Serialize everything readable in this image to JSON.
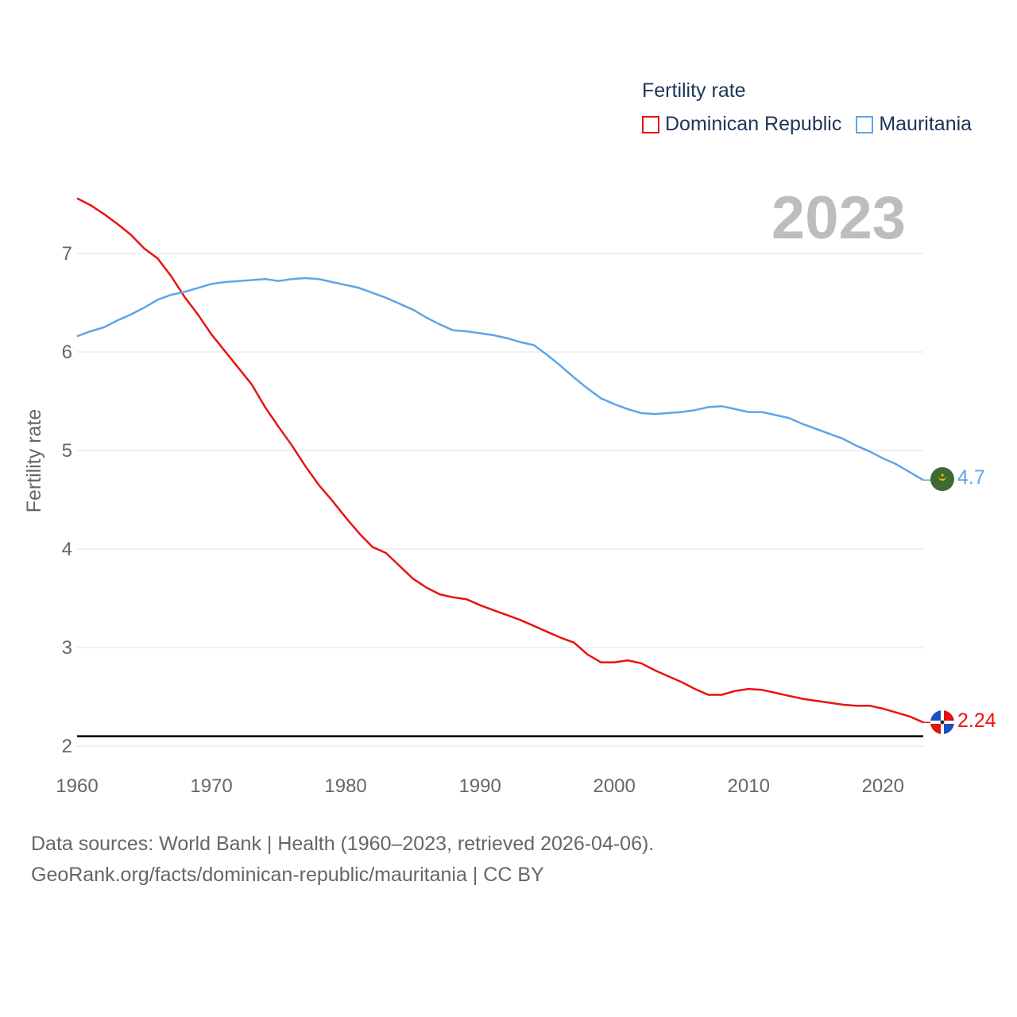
{
  "chart_data": {
    "type": "line",
    "title": "Fertility rate",
    "ylabel": "Fertility rate",
    "xlabel": "",
    "year_label": "2023",
    "xlim": [
      1960,
      2023
    ],
    "ylim": [
      2,
      7.6
    ],
    "x_ticks": [
      "1960",
      "1970",
      "1980",
      "1990",
      "2000",
      "2010",
      "2020"
    ],
    "y_ticks": [
      "2",
      "3",
      "4",
      "5",
      "6",
      "7"
    ],
    "reference_line": 2.1,
    "x": [
      1960,
      1961,
      1962,
      1963,
      1964,
      1965,
      1966,
      1967,
      1968,
      1969,
      1970,
      1971,
      1972,
      1973,
      1974,
      1975,
      1976,
      1977,
      1978,
      1979,
      1980,
      1981,
      1982,
      1983,
      1984,
      1985,
      1986,
      1987,
      1988,
      1989,
      1990,
      1991,
      1992,
      1993,
      1994,
      1995,
      1996,
      1997,
      1998,
      1999,
      2000,
      2001,
      2002,
      2003,
      2004,
      2005,
      2006,
      2007,
      2008,
      2009,
      2010,
      2011,
      2012,
      2013,
      2014,
      2015,
      2016,
      2017,
      2018,
      2019,
      2020,
      2021,
      2022,
      2023
    ],
    "series": [
      {
        "name": "Dominican Republic",
        "color": "#e8140f",
        "end_label": "2.24",
        "flag": "dominican-republic-flag-icon",
        "values": [
          7.56,
          7.49,
          7.4,
          7.3,
          7.19,
          7.05,
          6.95,
          6.77,
          6.56,
          6.38,
          6.18,
          6.01,
          5.84,
          5.67,
          5.44,
          5.24,
          5.05,
          4.84,
          4.65,
          4.49,
          4.32,
          4.16,
          4.02,
          3.96,
          3.83,
          3.7,
          3.61,
          3.54,
          3.51,
          3.49,
          3.43,
          3.38,
          3.33,
          3.28,
          3.22,
          3.16,
          3.1,
          3.05,
          2.93,
          2.85,
          2.85,
          2.87,
          2.84,
          2.77,
          2.71,
          2.65,
          2.58,
          2.52,
          2.52,
          2.56,
          2.58,
          2.57,
          2.54,
          2.51,
          2.48,
          2.46,
          2.44,
          2.42,
          2.41,
          2.41,
          2.38,
          2.34,
          2.3,
          2.24
        ]
      },
      {
        "name": "Mauritania",
        "color": "#5da5e8",
        "end_label": "4.7",
        "flag": "mauritania-flag-icon",
        "values": [
          6.16,
          6.21,
          6.25,
          6.32,
          6.38,
          6.45,
          6.53,
          6.58,
          6.61,
          6.65,
          6.69,
          6.71,
          6.72,
          6.73,
          6.74,
          6.72,
          6.74,
          6.75,
          6.74,
          6.71,
          6.68,
          6.65,
          6.6,
          6.55,
          6.49,
          6.43,
          6.35,
          6.28,
          6.22,
          6.21,
          6.19,
          6.17,
          6.14,
          6.1,
          6.07,
          5.97,
          5.86,
          5.74,
          5.63,
          5.53,
          5.47,
          5.42,
          5.38,
          5.37,
          5.38,
          5.39,
          5.41,
          5.44,
          5.45,
          5.42,
          5.39,
          5.39,
          5.36,
          5.33,
          5.27,
          5.22,
          5.17,
          5.12,
          5.05,
          4.99,
          4.92,
          4.86,
          4.78,
          4.7
        ]
      }
    ]
  },
  "footer": {
    "line1": "Data sources: World Bank | Health (1960–2023, retrieved 2026-04-06).",
    "line2": "GeoRank.org/facts/dominican-republic/mauritania | CC BY"
  }
}
